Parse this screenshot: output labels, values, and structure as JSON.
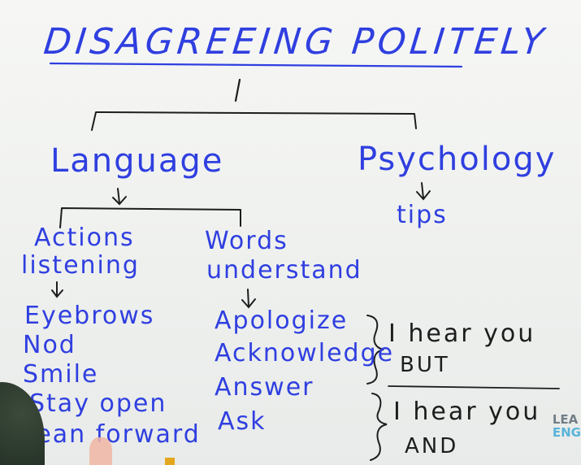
{
  "title": "DISAGREEING POLITELY",
  "branches": {
    "language": "Language",
    "psychology": "Psychology",
    "psychology_sub": "tips"
  },
  "actions": {
    "heading_line1": "Actions",
    "heading_line2": "listening",
    "items": [
      "Eyebrows",
      "Nod",
      "Smile",
      "Stay open",
      "lean forward"
    ]
  },
  "words": {
    "heading_line1": "Words",
    "heading_line2": "understand",
    "items": [
      "Apologize",
      "Acknowledge",
      "Answer",
      "Ask"
    ]
  },
  "notes": {
    "first_line1": "I hear you",
    "first_line2": "BUT",
    "second_line1": "I hear you",
    "second_line2": "AND"
  },
  "logo": {
    "line1": "LEA",
    "line2": "ENG"
  },
  "colors": {
    "marker_blue": "#2f3fe0",
    "marker_black": "#1d1d1d",
    "board": "#f3f4f2"
  }
}
